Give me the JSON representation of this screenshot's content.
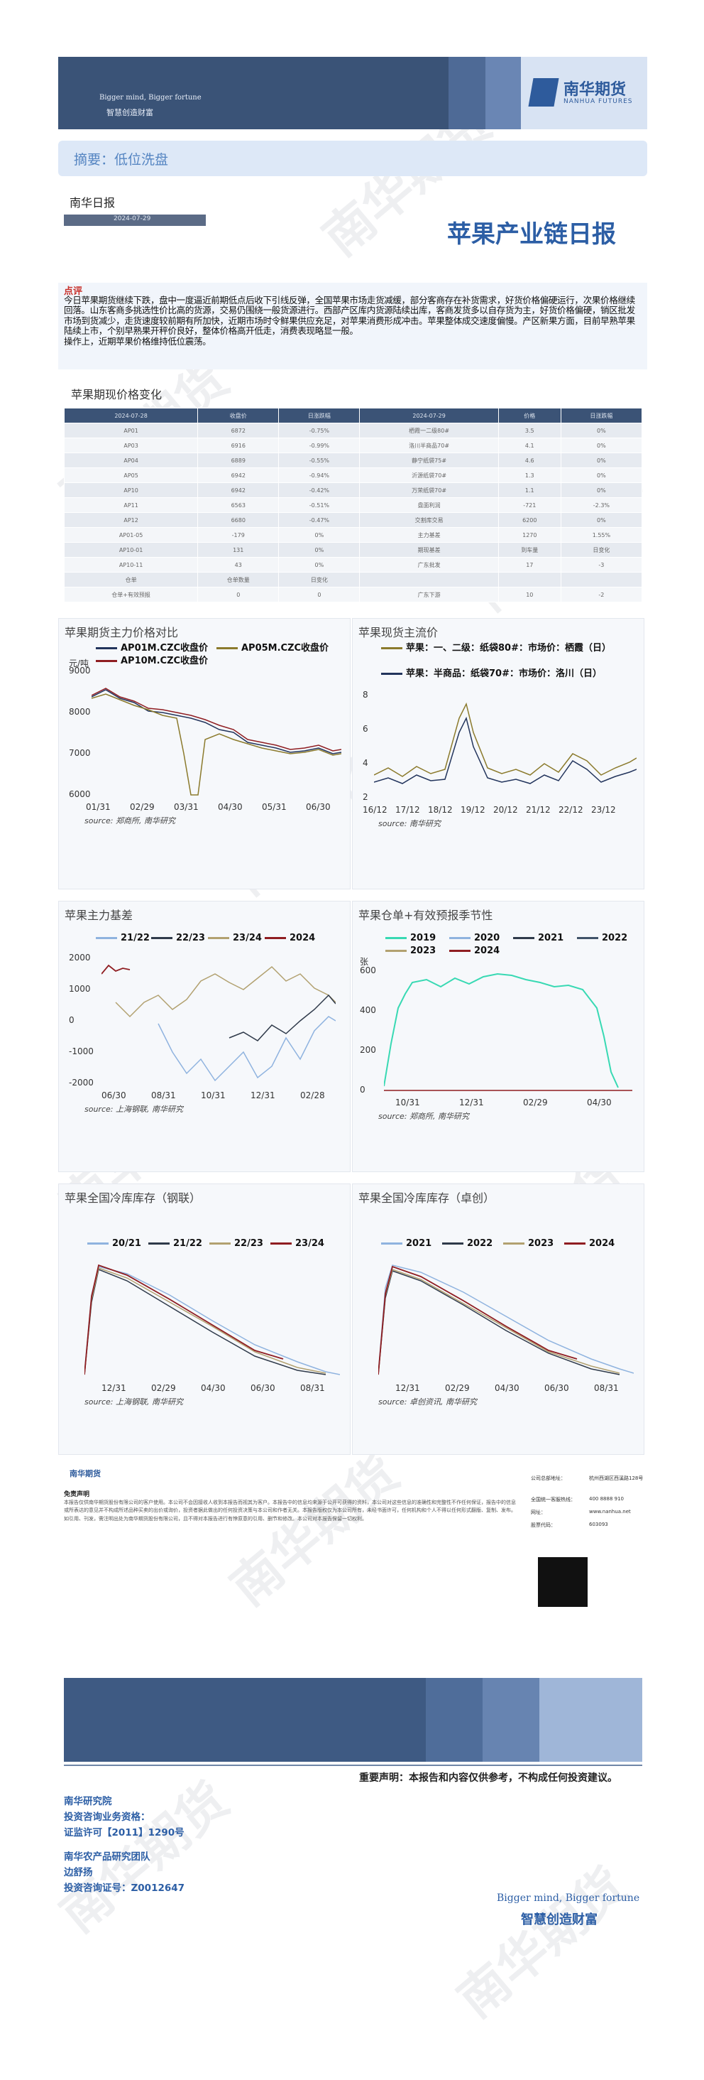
{
  "header": {
    "slogan_en": "Bigger mind, Bigger fortune",
    "slogan_cn": "智慧创造财富",
    "logo_cn": "南华期货",
    "logo_en": "NANHUA FUTURES"
  },
  "summary": "摘要：低位洗盘",
  "daily_label": "南华日报",
  "date": "2024-07-29",
  "report_title": "苹果产业链日报",
  "comment": {
    "title": "点评",
    "body": "今日苹果期货继续下跌，盘中一度逼近前期低点后收下引线反弹，全国苹果市场走货减缓，部分客商存在补货需求，好货价格偏硬运行，次果价格继续回落。山东客商多挑选性价比高的货源，交易仍围绕一般货源进行。西部产区库内货源陆续出库，客商发货多以自存货为主，好货价格偏硬，销区批发市场到货减少，走货速度较前期有所加快，近期市场时令鲜果供应充足，对苹果消费形成冲击。苹果整体成交速度偏慢。产区新果方面，目前早熟苹果陆续上市，个别早熟果开秤价良好，整体价格高开低走，消费表现略显一般。",
    "body2": "操作上，近期苹果价格维持低位震荡。"
  },
  "price_section_title": "苹果期现价格变化",
  "table": {
    "headers": [
      "2024-07-28",
      "收盘价",
      "日涨跌幅",
      "2024-07-29",
      "价格",
      "日涨跌幅"
    ],
    "rows": [
      [
        "AP01",
        "6872",
        "-0.75%",
        "栖霞一二级80#",
        "3.5",
        "0%"
      ],
      [
        "AP03",
        "6916",
        "-0.99%",
        "洛川半商品70#",
        "4.1",
        "0%"
      ],
      [
        "AP04",
        "6889",
        "-0.55%",
        "静宁纸袋75#",
        "4.6",
        "0%"
      ],
      [
        "AP05",
        "6942",
        "-0.94%",
        "沂源纸袋70#",
        "1.3",
        "0%"
      ],
      [
        "AP10",
        "6942",
        "-0.42%",
        "万荣纸袋70#",
        "1.1",
        "0%"
      ],
      [
        "AP11",
        "6563",
        "-0.51%",
        "盘面利润",
        "-721",
        "-2.3%"
      ],
      [
        "AP12",
        "6680",
        "-0.47%",
        "交割库交易",
        "6200",
        "0%"
      ],
      [
        "AP01-05",
        "-179",
        "0%",
        "主力基差",
        "1270",
        "1.55%"
      ],
      [
        "AP10-01",
        "131",
        "0%",
        "期现基差",
        "到车量",
        "日变化"
      ],
      [
        "AP10-11",
        "43",
        "0%",
        "广东批发",
        "17",
        "-3"
      ],
      [
        "仓单",
        "仓单数量",
        "日变化",
        "",
        "",
        ""
      ],
      [
        "仓单+有效预报",
        "0",
        "0",
        "广东下游",
        "10",
        "-2"
      ]
    ]
  },
  "charts": {
    "c1": {
      "title": "苹果期货主力价格对比",
      "source": "source: 郑商所, 南华研究",
      "legend": [
        "AP01M.CZC收盘价",
        "AP05M.CZC收盘价",
        "AP10M.CZC收盘价"
      ],
      "yunit": "元/吨",
      "yticks": [
        "9000",
        "8000",
        "7000",
        "6000"
      ],
      "xticks": [
        "01/31",
        "02/29",
        "03/31",
        "04/30",
        "05/31",
        "06/30"
      ]
    },
    "c2": {
      "title": "苹果现货主流价",
      "source": "source: 南华研究",
      "legend": [
        "苹果：一、二级：纸袋80#：市场价：栖霞（日）",
        "苹果：半商品：纸袋70#：市场价：洛川（日）"
      ],
      "yticks": [
        "8",
        "6",
        "4",
        "2"
      ],
      "xticks": [
        "16/12",
        "17/12",
        "18/12",
        "19/12",
        "20/12",
        "21/12",
        "22/12",
        "23/12"
      ]
    },
    "c3": {
      "title": "苹果主力基差",
      "source": "source: 上海钢联, 南华研究",
      "legend": [
        "21/22",
        "22/23",
        "23/24",
        "2024"
      ],
      "yticks": [
        "2000",
        "1000",
        "0",
        "-1000",
        "-2000"
      ],
      "xticks": [
        "06/30",
        "08/31",
        "10/31",
        "12/31",
        "02/28"
      ]
    },
    "c4": {
      "title": "苹果仓单+有效预报季节性",
      "source": "source: 郑商所, 南华研究",
      "legend": [
        "2019",
        "2020",
        "2021",
        "2022",
        "2023",
        "2024"
      ],
      "yunit": "张",
      "yticks": [
        "600",
        "400",
        "200",
        "0"
      ],
      "xticks": [
        "10/31",
        "12/31",
        "02/29",
        "04/30"
      ]
    },
    "c5": {
      "title": "苹果全国冷库库存（钢联）",
      "source": "source: 上海钢联, 南华研究",
      "legend": [
        "20/21",
        "21/22",
        "22/23",
        "23/24"
      ],
      "xticks": [
        "12/31",
        "02/29",
        "04/30",
        "06/30",
        "08/31"
      ]
    },
    "c6": {
      "title": "苹果全国冷库库存（卓创）",
      "source": "source: 卓创资讯, 南华研究",
      "legend": [
        "2021",
        "2022",
        "2023",
        "2024"
      ],
      "xticks": [
        "12/31",
        "02/29",
        "04/30",
        "06/30",
        "08/31"
      ]
    }
  },
  "colors": {
    "navy": "#22345c",
    "olive": "#8b7a2c",
    "darkred": "#8f1d21",
    "lightblue": "#8fb3df",
    "teal": "#38d9b3",
    "darkgray": "#2f3a4a",
    "tan": "#b2a170",
    "slate": "#405369"
  },
  "disclaimer": {
    "logo": "南华期货",
    "title": "免责声明",
    "body": "本报告仅供南华期货股份有限公司的客户使用。本公司不会因接收人收到本报告而视其为客户。本报告中的信息均来源于公开可获得的资料，本公司对这些信息的准确性和完整性不作任何保证，报告中的信息或所表达的意见并不构成所述品种买卖的出价或询价，投资者据此做出的任何投资决策与本公司和作者无关。本报告版权仅为本公司所有，未经书面许可，任何机构和个人不得以任何形式翻版、复制、发布。如引用、刊发，需注明出处为南华期货股份有限公司，且不得对本报告进行有悖原意的引用、删节和修改。本公司对本报告保留一切权利。",
    "info": [
      {
        "k": "公司总部地址：",
        "v": "杭州西湖区西溪路128号"
      },
      {
        "k": "全国统一客服热线：",
        "v": "400 8888 910"
      },
      {
        "k": "网址：",
        "v": "www.nanhua.net"
      },
      {
        "k": "股票代码：",
        "v": "603093"
      }
    ]
  },
  "notice": "重要声明：本报告和内容仅供参考，不构成任何投资建议。",
  "team": {
    "dept": "南华研究院",
    "qual": "投资咨询业务资格：",
    "license": "证监许可【2011】1290号",
    "team_name": "南华农产品研究团队",
    "analyst": "边舒扬",
    "cert": "投资咨询证号：Z0012647"
  },
  "footer": {
    "slogan_en": "Bigger mind, Bigger fortune",
    "slogan_cn": "智慧创造财富"
  }
}
